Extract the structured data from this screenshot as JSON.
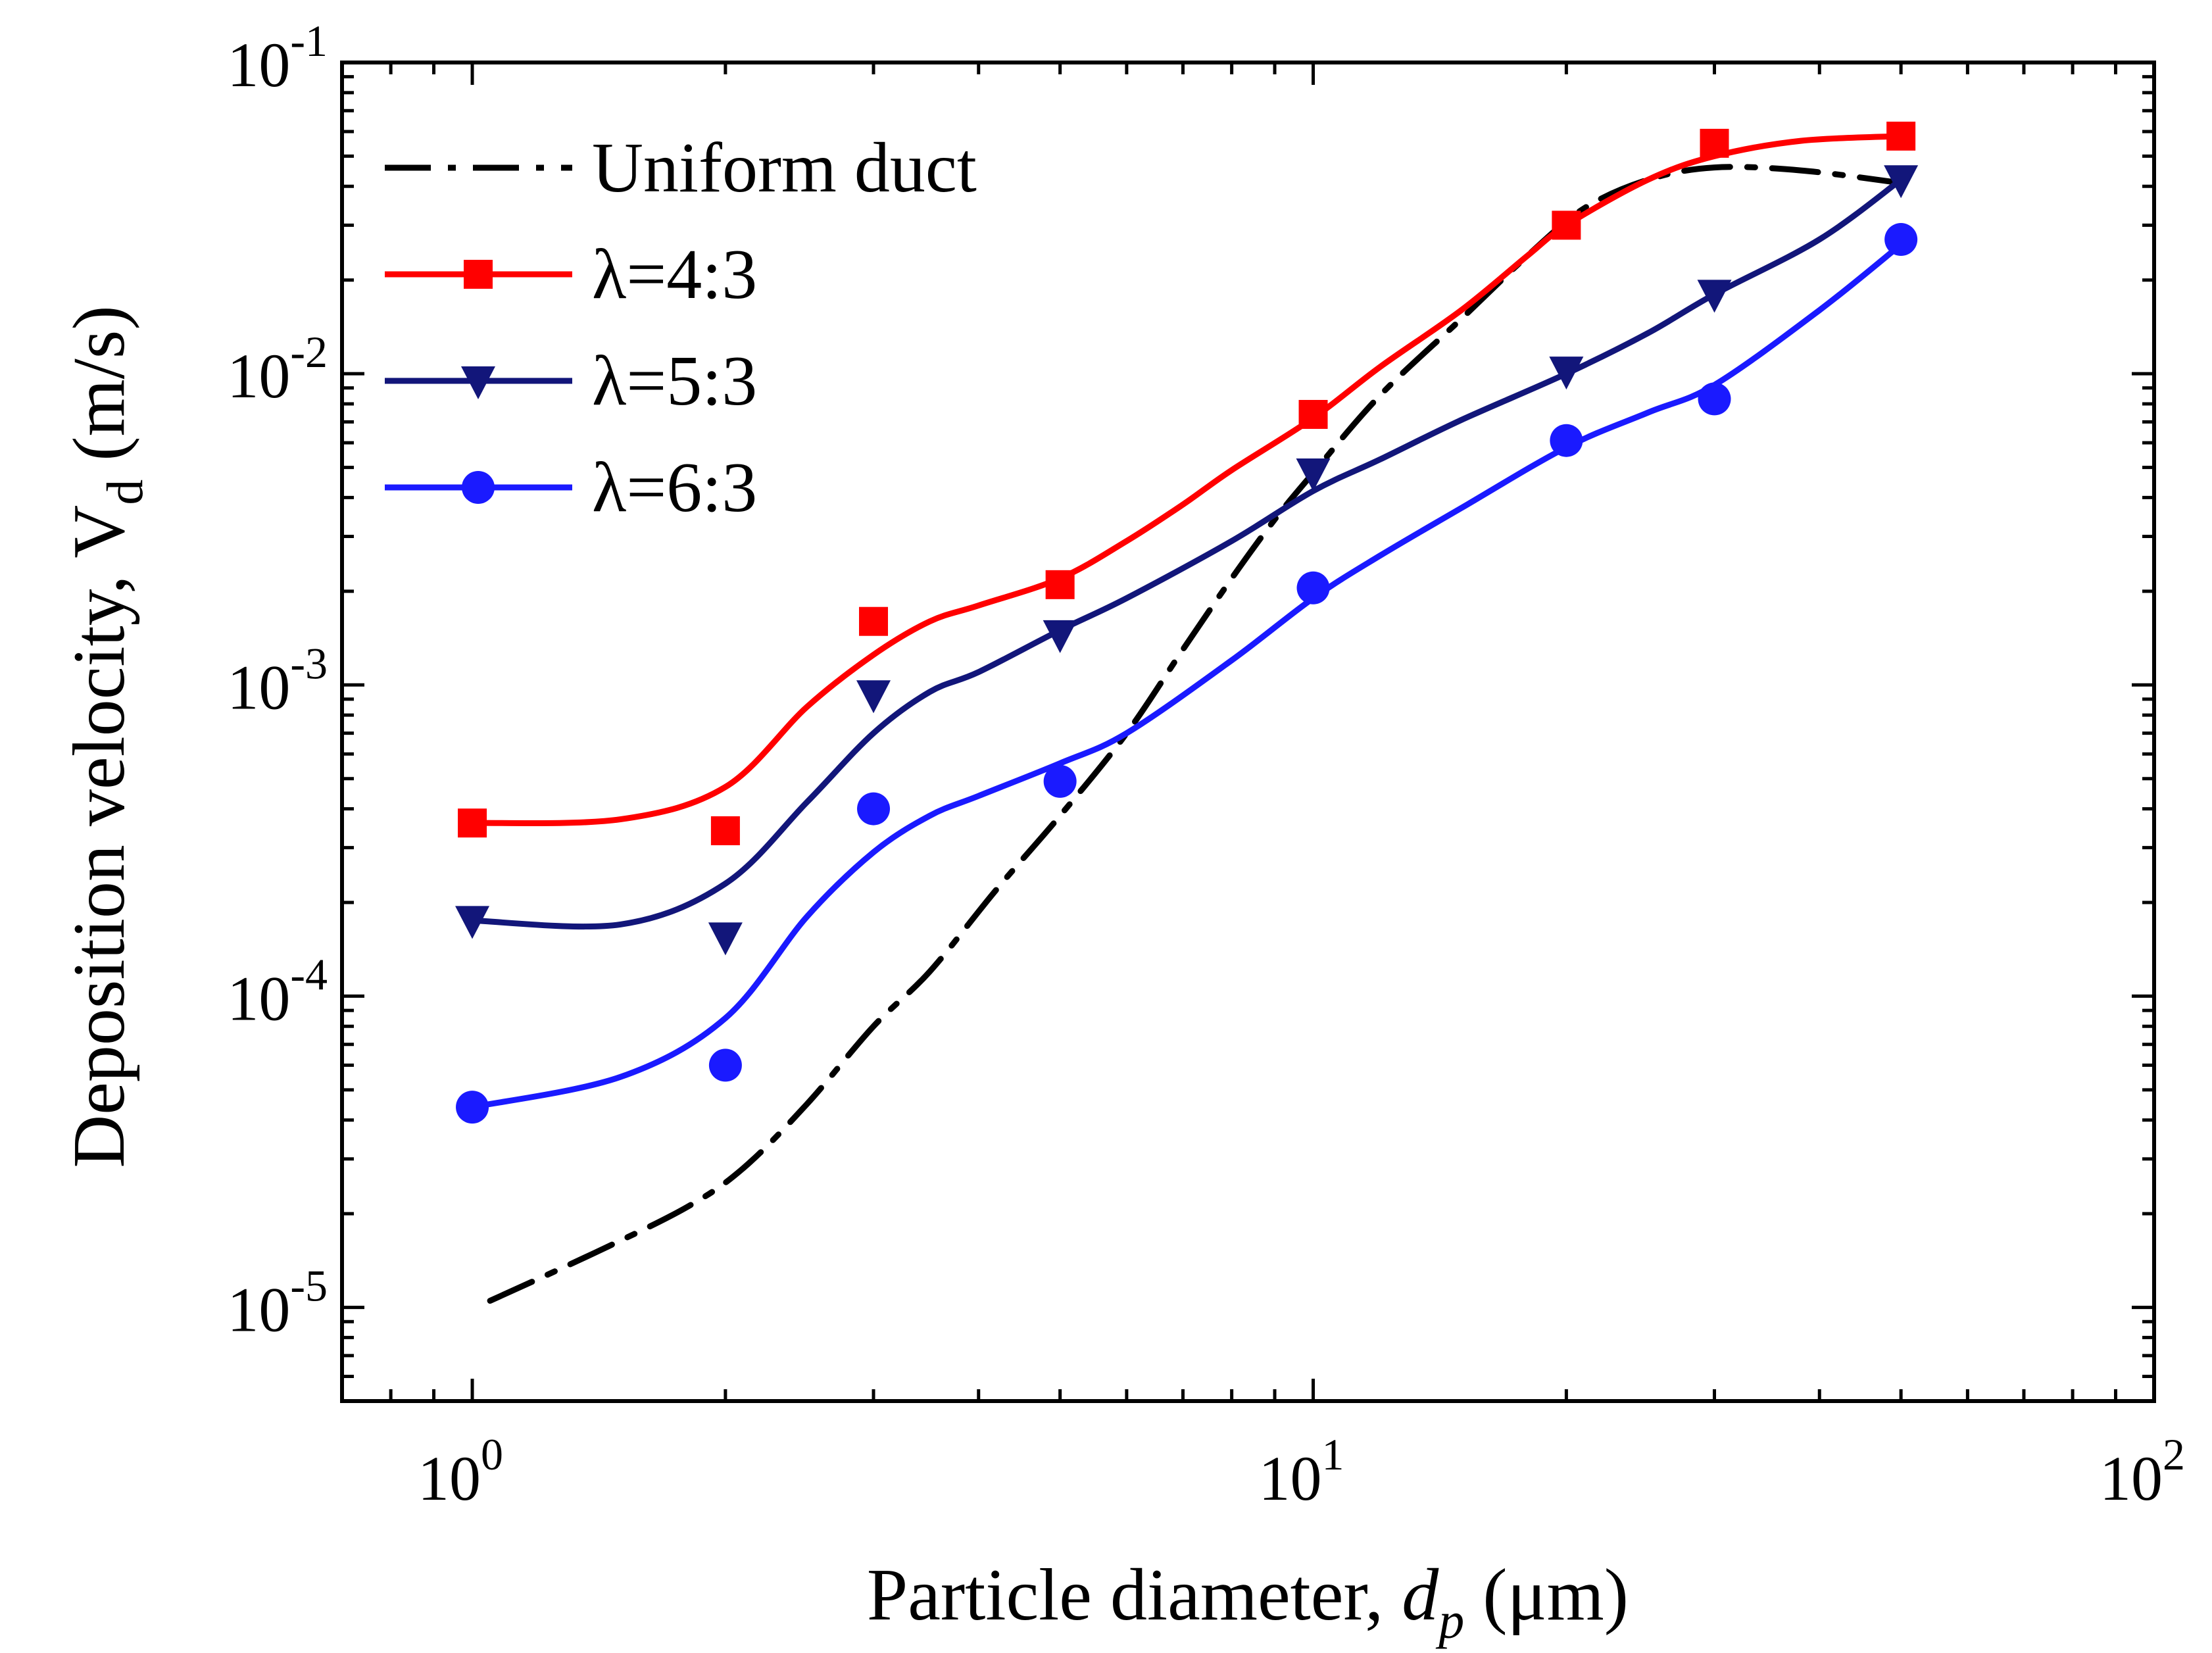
{
  "chart_data": {
    "type": "line",
    "xscale": "log",
    "yscale": "log",
    "xlim": [
      0.7,
      100
    ],
    "ylim": [
      5e-06,
      0.1
    ],
    "xlabel": {
      "prefix": "Particle diameter, ",
      "var": "d",
      "sub": "p",
      "suffix": " (μm)"
    },
    "ylabel": {
      "prefix": "Deposition velocity, V",
      "sub": "d",
      "suffix": " (m/s)"
    },
    "x_ticks": [
      {
        "value": 1,
        "base": "10",
        "exp": "0"
      },
      {
        "value": 10,
        "base": "10",
        "exp": "1"
      },
      {
        "value": 100,
        "base": "10",
        "exp": "2"
      }
    ],
    "y_ticks": [
      {
        "value": 1e-05,
        "base": "10",
        "exp": "-5"
      },
      {
        "value": 0.0001,
        "base": "10",
        "exp": "-4"
      },
      {
        "value": 0.001,
        "base": "10",
        "exp": "-3"
      },
      {
        "value": 0.01,
        "base": "10",
        "exp": "-2"
      },
      {
        "value": 0.1,
        "base": "10",
        "exp": "-1"
      }
    ],
    "legend_position": "top-left",
    "series": [
      {
        "name": "Uniform duct",
        "color": "#000000",
        "marker": "none",
        "line": "dashdot",
        "curve": [
          [
            1.05,
            1.05e-05
          ],
          [
            1.4,
            1.5e-05
          ],
          [
            1.8,
            2.1e-05
          ],
          [
            2.1,
            2.8e-05
          ],
          [
            2.5,
            4.5e-05
          ],
          [
            3.0,
            8e-05
          ],
          [
            3.5,
            0.00012
          ],
          [
            4.2,
            0.00022
          ],
          [
            5.0,
            0.00038
          ],
          [
            6.0,
            0.0007
          ],
          [
            7.0,
            0.0013
          ],
          [
            8.0,
            0.0022
          ],
          [
            9.0,
            0.0034
          ],
          [
            10.0,
            0.0048
          ],
          [
            12.0,
            0.0085
          ],
          [
            15.0,
            0.015
          ],
          [
            18.0,
            0.024
          ],
          [
            21.0,
            0.034
          ],
          [
            25.0,
            0.042
          ],
          [
            30.0,
            0.046
          ],
          [
            38.0,
            0.045
          ],
          [
            50.0,
            0.041
          ]
        ]
      },
      {
        "name": "λ=4:3",
        "color": "#ff0000",
        "marker": "square",
        "line": "solid",
        "points": [
          [
            1,
            0.00036
          ],
          [
            2,
            0.00034
          ],
          [
            3,
            0.0016
          ],
          [
            5,
            0.0021
          ],
          [
            10,
            0.0074
          ],
          [
            20,
            0.03
          ],
          [
            30,
            0.055
          ],
          [
            50,
            0.058
          ]
        ],
        "curve": [
          [
            1.0,
            0.00036
          ],
          [
            1.5,
            0.00037
          ],
          [
            2.0,
            0.00047
          ],
          [
            2.5,
            0.00085
          ],
          [
            3.0,
            0.00125
          ],
          [
            3.5,
            0.0016
          ],
          [
            4.0,
            0.0018
          ],
          [
            5.0,
            0.0022
          ],
          [
            6.0,
            0.0029
          ],
          [
            7.0,
            0.0038
          ],
          [
            8.0,
            0.0049
          ],
          [
            10.0,
            0.0072
          ],
          [
            12.0,
            0.0105
          ],
          [
            15.0,
            0.016
          ],
          [
            18.0,
            0.024
          ],
          [
            20.0,
            0.03
          ],
          [
            25.0,
            0.042
          ],
          [
            30.0,
            0.05
          ],
          [
            38.0,
            0.056
          ],
          [
            50.0,
            0.058
          ]
        ]
      },
      {
        "name": "λ=5:3",
        "color": "#12167a",
        "marker": "triangle-down",
        "line": "solid",
        "points": [
          [
            1,
            0.000175
          ],
          [
            2,
            0.000155
          ],
          [
            3,
            0.00093
          ],
          [
            5,
            0.00145
          ],
          [
            10,
            0.0048
          ],
          [
            20,
            0.0102
          ],
          [
            30,
            0.018
          ],
          [
            50,
            0.042
          ]
        ],
        "curve": [
          [
            1.0,
            0.000175
          ],
          [
            1.5,
            0.00017
          ],
          [
            2.0,
            0.00023
          ],
          [
            2.5,
            0.00042
          ],
          [
            3.0,
            0.0007
          ],
          [
            3.5,
            0.00095
          ],
          [
            4.0,
            0.0011
          ],
          [
            5.0,
            0.0015
          ],
          [
            6.0,
            0.0019
          ],
          [
            8.0,
            0.0029
          ],
          [
            10.0,
            0.0042
          ],
          [
            12.0,
            0.0053
          ],
          [
            15.0,
            0.0071
          ],
          [
            20.0,
            0.01
          ],
          [
            25.0,
            0.0135
          ],
          [
            30.0,
            0.018
          ],
          [
            40.0,
            0.027
          ],
          [
            50.0,
            0.042
          ]
        ]
      },
      {
        "name": "λ=6:3",
        "color": "#1a1aff",
        "marker": "circle",
        "line": "solid",
        "points": [
          [
            1,
            4.4e-05
          ],
          [
            2,
            6e-05
          ],
          [
            3,
            0.0004
          ],
          [
            5,
            0.00049
          ],
          [
            10,
            0.00205
          ],
          [
            20,
            0.0061
          ],
          [
            30,
            0.0083
          ],
          [
            50,
            0.027
          ]
        ],
        "curve": [
          [
            1.0,
            4.4e-05
          ],
          [
            1.5,
            5.5e-05
          ],
          [
            2.0,
            8.5e-05
          ],
          [
            2.5,
            0.00018
          ],
          [
            3.0,
            0.00029
          ],
          [
            3.5,
            0.00038
          ],
          [
            4.0,
            0.00044
          ],
          [
            5.0,
            0.00056
          ],
          [
            6.0,
            0.0007
          ],
          [
            8.0,
            0.0012
          ],
          [
            10.0,
            0.0019
          ],
          [
            12.0,
            0.0026
          ],
          [
            15.0,
            0.0037
          ],
          [
            20.0,
            0.0058
          ],
          [
            25.0,
            0.0075
          ],
          [
            30.0,
            0.0092
          ],
          [
            40.0,
            0.016
          ],
          [
            50.0,
            0.026
          ]
        ]
      }
    ]
  }
}
